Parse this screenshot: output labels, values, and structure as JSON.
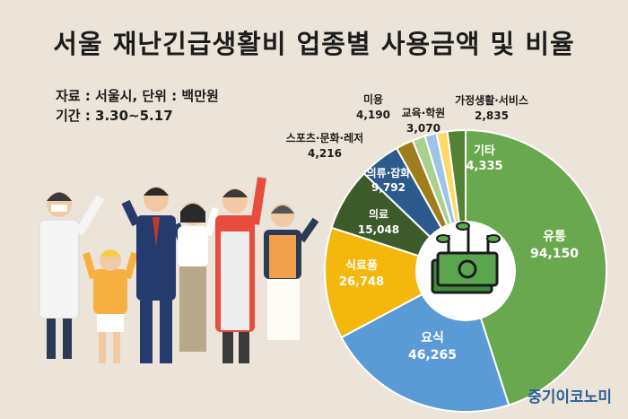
{
  "title": "서울 재난긴급생활비 업종별 사용금액 및 비율",
  "source_line": "자료 : 서울시, 단위 : 백만원",
  "period_line": "기간 : 3.30~5.17",
  "brand": "중기이코노미",
  "chart_data": {
    "type": "pie",
    "title": "서울 재난긴급생활비 업종별 사용금액 및 비율",
    "unit": "백만원",
    "slices": [
      {
        "name": "유통",
        "value": 94150,
        "display": "94,150",
        "color": "#6aa84f"
      },
      {
        "name": "요식",
        "value": 46265,
        "display": "46,265",
        "color": "#5b9bd5"
      },
      {
        "name": "식료품",
        "value": 26748,
        "display": "26,748",
        "color": "#f4b80c"
      },
      {
        "name": "의료",
        "value": 15048,
        "display": "15,048",
        "color": "#3d5a2a"
      },
      {
        "name": "의류·잡화",
        "value": 9792,
        "display": "9,792",
        "color": "#2c5a8c"
      },
      {
        "name": "미용",
        "value": 4190,
        "display": "4,190",
        "color": "#a07d1c"
      },
      {
        "name": "교육·학원",
        "value": 3070,
        "display": "3,070",
        "color": "#a9d18e"
      },
      {
        "name": "가정생활·서비스",
        "value": 2835,
        "display": "2,835",
        "color": "#9dc3e6"
      },
      {
        "name": "",
        "value": 2600,
        "display": "",
        "color": "#ffd966"
      },
      {
        "name": "기타",
        "value": 4335,
        "display": "4,335",
        "color": "#548235"
      }
    ]
  }
}
